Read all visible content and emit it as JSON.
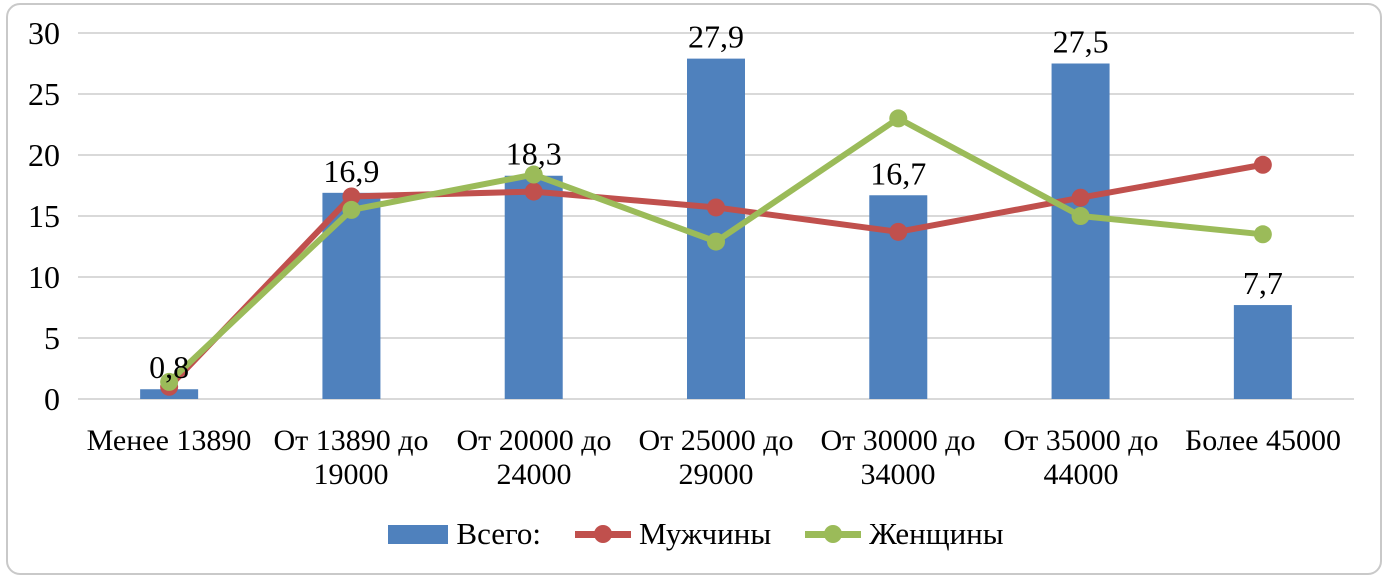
{
  "chart_data": {
    "type": "combo-bar-line",
    "title": "",
    "categories": [
      "Менее 13890",
      "От 13890 до 19000",
      "От 20000 до 24000",
      "От 25000 до 29000",
      "От 30000 до 34000",
      "От 35000 до 44000",
      "Более 45000"
    ],
    "series": [
      {
        "name": "Всего:",
        "type": "bar",
        "color": "#4f81bd",
        "values": [
          0.8,
          16.9,
          18.3,
          27.9,
          16.7,
          27.5,
          7.7
        ],
        "data_labels": [
          "0,8",
          "16,9",
          "18,3",
          "27,9",
          "16,7",
          "27,5",
          "7,7"
        ]
      },
      {
        "name": "Мужчины",
        "type": "line",
        "color": "#c0504d",
        "values": [
          1.0,
          16.6,
          17.0,
          15.7,
          13.7,
          16.5,
          19.2
        ]
      },
      {
        "name": "Женщины",
        "type": "line",
        "color": "#9bbb59",
        "values": [
          1.4,
          15.5,
          18.4,
          12.9,
          23.0,
          15.0,
          13.5
        ]
      }
    ],
    "y_axis": {
      "min": 0,
      "max": 30,
      "step": 5,
      "tick_labels_top_to_bottom": [
        "30",
        "25",
        "20",
        "15",
        "10",
        "5",
        "0"
      ]
    },
    "x_axis_label": "",
    "y_axis_label": "",
    "grid": true,
    "legend_position": "bottom",
    "gridline_color": "#d9d9d9",
    "frame_border_color": "#c9c9c9",
    "background_color": "#ffffff"
  }
}
